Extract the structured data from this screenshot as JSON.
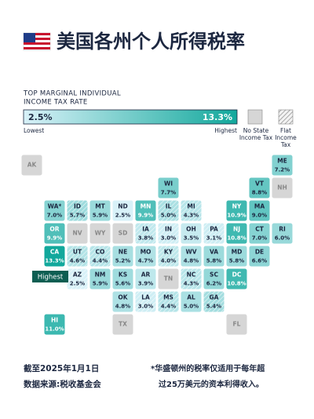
{
  "header": {
    "title": "美国各州个人所得税率"
  },
  "legend": {
    "title_line1": "TOP MARGINAL INDIVIDUAL",
    "title_line2": "INCOME TAX RATE",
    "low": {
      "value": 2.5,
      "label": "2.5%"
    },
    "high": {
      "value": 13.3,
      "label": "13.3%"
    },
    "low_text": "Lowest",
    "high_text": "Highest",
    "no_tax_line1": "No State",
    "no_tax_line2": "Income Tax",
    "flat_line1": "Flat",
    "flat_line2": "Income",
    "flat_line3": "Tax",
    "low_color": "#d8f1f8",
    "high_color": "#12a89c",
    "no_tax_color": "#d6d6d6"
  },
  "callout": "Highest",
  "states": [
    {
      "abbr": "AK",
      "rate": null
    },
    {
      "abbr": "ME",
      "rate": 7.2,
      "rate_label": "7.2%"
    },
    {
      "abbr": "WI",
      "rate": 7.7,
      "rate_label": "7.7%"
    },
    {
      "abbr": "VT",
      "rate": 8.8,
      "rate_label": "8.8%"
    },
    {
      "abbr": "NH",
      "rate": null
    },
    {
      "abbr": "WA*",
      "rate": 7.0,
      "rate_label": "7.0%"
    },
    {
      "abbr": "ID",
      "rate": 5.7,
      "rate_label": "5.7%",
      "flat": true
    },
    {
      "abbr": "MT",
      "rate": 5.9,
      "rate_label": "5.9%"
    },
    {
      "abbr": "ND",
      "rate": 2.5,
      "rate_label": "2.5%"
    },
    {
      "abbr": "MN",
      "rate": 9.9,
      "rate_label": "9.9%"
    },
    {
      "abbr": "IL",
      "rate": 5.0,
      "rate_label": "5.0%",
      "flat": true
    },
    {
      "abbr": "MI",
      "rate": 4.3,
      "rate_label": "4.3%",
      "flat": true
    },
    {
      "abbr": "NY",
      "rate": 10.9,
      "rate_label": "10.9%"
    },
    {
      "abbr": "MA",
      "rate": 9.0,
      "rate_label": "9.0%"
    },
    {
      "abbr": "OR",
      "rate": 9.9,
      "rate_label": "9.9%"
    },
    {
      "abbr": "NV",
      "rate": null
    },
    {
      "abbr": "WY",
      "rate": null
    },
    {
      "abbr": "SD",
      "rate": null
    },
    {
      "abbr": "IA",
      "rate": 3.8,
      "rate_label": "3.8%",
      "flat": true
    },
    {
      "abbr": "IN",
      "rate": 3.0,
      "rate_label": "3.0%",
      "flat": true
    },
    {
      "abbr": "OH",
      "rate": 3.5,
      "rate_label": "3.5%"
    },
    {
      "abbr": "PA",
      "rate": 3.1,
      "rate_label": "3.1%",
      "flat": true
    },
    {
      "abbr": "NJ",
      "rate": 10.8,
      "rate_label": "10.8%"
    },
    {
      "abbr": "CT",
      "rate": 7.0,
      "rate_label": "7.0%"
    },
    {
      "abbr": "RI",
      "rate": 6.0,
      "rate_label": "6.0%"
    },
    {
      "abbr": "CA",
      "rate": 13.3,
      "rate_label": "13.3%"
    },
    {
      "abbr": "UT",
      "rate": 4.6,
      "rate_label": "4.6%",
      "flat": true
    },
    {
      "abbr": "CO",
      "rate": 4.4,
      "rate_label": "4.4%",
      "flat": true
    },
    {
      "abbr": "NE",
      "rate": 5.2,
      "rate_label": "5.2%"
    },
    {
      "abbr": "MO",
      "rate": 4.7,
      "rate_label": "4.7%"
    },
    {
      "abbr": "KY",
      "rate": 4.0,
      "rate_label": "4.0%",
      "flat": true
    },
    {
      "abbr": "WV",
      "rate": 4.8,
      "rate_label": "4.8%"
    },
    {
      "abbr": "VA",
      "rate": 5.8,
      "rate_label": "5.8%"
    },
    {
      "abbr": "MD",
      "rate": 5.8,
      "rate_label": "5.8%"
    },
    {
      "abbr": "DE",
      "rate": 6.6,
      "rate_label": "6.6%"
    },
    {
      "abbr": "AZ",
      "rate": 2.5,
      "rate_label": "2.5%",
      "flat": true
    },
    {
      "abbr": "NM",
      "rate": 5.9,
      "rate_label": "5.9%"
    },
    {
      "abbr": "KS",
      "rate": 5.6,
      "rate_label": "5.6%"
    },
    {
      "abbr": "AR",
      "rate": 3.9,
      "rate_label": "3.9%"
    },
    {
      "abbr": "TN",
      "rate": null
    },
    {
      "abbr": "NC",
      "rate": 4.3,
      "rate_label": "4.3%",
      "flat": true
    },
    {
      "abbr": "SC",
      "rate": 6.2,
      "rate_label": "6.2%"
    },
    {
      "abbr": "DC",
      "rate": 10.8,
      "rate_label": "10.8%"
    },
    {
      "abbr": "OK",
      "rate": 4.8,
      "rate_label": "4.8%"
    },
    {
      "abbr": "LA",
      "rate": 3.0,
      "rate_label": "3.0%",
      "flat": true
    },
    {
      "abbr": "MS",
      "rate": 4.4,
      "rate_label": "4.4%",
      "flat": true
    },
    {
      "abbr": "AL",
      "rate": 5.0,
      "rate_label": "5.0%"
    },
    {
      "abbr": "GA",
      "rate": 5.4,
      "rate_label": "5.4%",
      "flat": true
    },
    {
      "abbr": "HI",
      "rate": 11.0,
      "rate_label": "11.0%"
    },
    {
      "abbr": "TX",
      "rate": null
    },
    {
      "abbr": "FL",
      "rate": null
    }
  ],
  "footer": {
    "date": "截至2025年1月1日",
    "source": "数据来源:税收基金会",
    "note_line1": "*华盛顿州的税率仅适用于每年超",
    "note_line2": "过25万美元的资本利得收入。"
  }
}
